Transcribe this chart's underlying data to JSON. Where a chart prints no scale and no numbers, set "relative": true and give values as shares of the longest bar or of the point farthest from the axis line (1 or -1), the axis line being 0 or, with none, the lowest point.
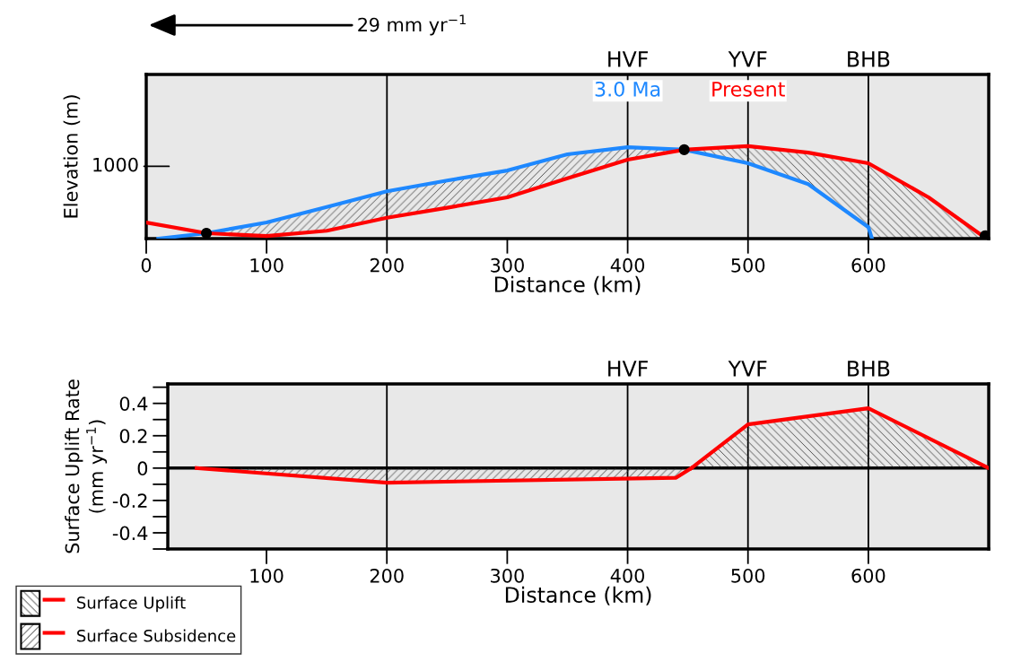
{
  "chart_data": [
    {
      "type": "line",
      "relative": true,
      "xlabel": "Distance (km)",
      "ylabel": "Elevation (m)",
      "xlim": [
        0,
        700
      ],
      "xticks": [
        0,
        100,
        200,
        300,
        400,
        500,
        600
      ],
      "annotations": [
        "29 mm yr$^{−1}$",
        "1000"
      ],
      "ref_lines": [
        {
          "axis": "x",
          "value": 200,
          "label": null
        },
        {
          "axis": "x",
          "value": 400,
          "label": "HVF"
        },
        {
          "axis": "x",
          "value": 500,
          "label": "YVF"
        },
        {
          "axis": "x",
          "value": 600,
          "label": "BHB"
        }
      ],
      "series": [
        {
          "name": "3.0 Ma",
          "color": "#1e88ff",
          "x": [
            10,
            50,
            100,
            150,
            200,
            250,
            300,
            350,
            400,
            447,
            500,
            550,
            600,
            603
          ],
          "values": [
            0,
            0.058,
            0.174,
            0.341,
            0.512,
            0.628,
            0.736,
            0.911,
            0.988,
            0.961,
            0.814,
            0.589,
            0.124,
            0
          ]
        },
        {
          "name": "Present",
          "color": "#ff0000",
          "x": [
            0,
            50,
            100,
            150,
            200,
            250,
            300,
            350,
            400,
            447,
            500,
            550,
            600,
            650,
            698
          ],
          "values": [
            0.174,
            0.058,
            0.027,
            0.085,
            0.225,
            0.333,
            0.446,
            0.651,
            0.853,
            0.961,
            1,
            0.93,
            0.814,
            0.446,
            0
          ]
        },
        {
          "type": "scatter",
          "color": "#000000",
          "x": [
            50,
            447,
            697
          ],
          "values": [
            0.058,
            0.961,
            0.03
          ]
        }
      ]
    },
    {
      "type": "area",
      "xlabel": "Distance (km)",
      "ylabel": "Surface Uplift Rate\n(mm yr$^{−1}$)",
      "xlim": [
        18,
        700
      ],
      "xticks": [
        100,
        200,
        300,
        400,
        500,
        600
      ],
      "ylim": [
        -0.5,
        0.52
      ],
      "yticks": [
        {
          "value": 0.4,
          "label": "0.4"
        },
        {
          "value": 0.2,
          "label": "0.2"
        },
        {
          "value": 0,
          "label": "0"
        },
        {
          "value": -0.2,
          "label": "-0.2"
        },
        {
          "value": -0.4,
          "label": "-0.4"
        }
      ],
      "ref_lines": [
        {
          "axis": "x",
          "value": 200,
          "label": null
        },
        {
          "axis": "x",
          "value": 400,
          "label": "HVF"
        },
        {
          "axis": "x",
          "value": 500,
          "label": "YVF"
        },
        {
          "axis": "x",
          "value": 600,
          "label": "BHB"
        },
        {
          "axis": "y",
          "value": 0,
          "label": null
        }
      ],
      "legend": "bottom left",
      "series": [
        {
          "name": "Surface Uplift",
          "color": "#ff0000",
          "x": [
            453,
            500,
            600,
            700
          ],
          "values": [
            0,
            0.27,
            0.37,
            0
          ]
        },
        {
          "name": "Surface Subsidence",
          "color": "#ff0000",
          "x": [
            42,
            200,
            440,
            453
          ],
          "values": [
            0,
            -0.09,
            -0.06,
            0
          ]
        }
      ]
    }
  ]
}
